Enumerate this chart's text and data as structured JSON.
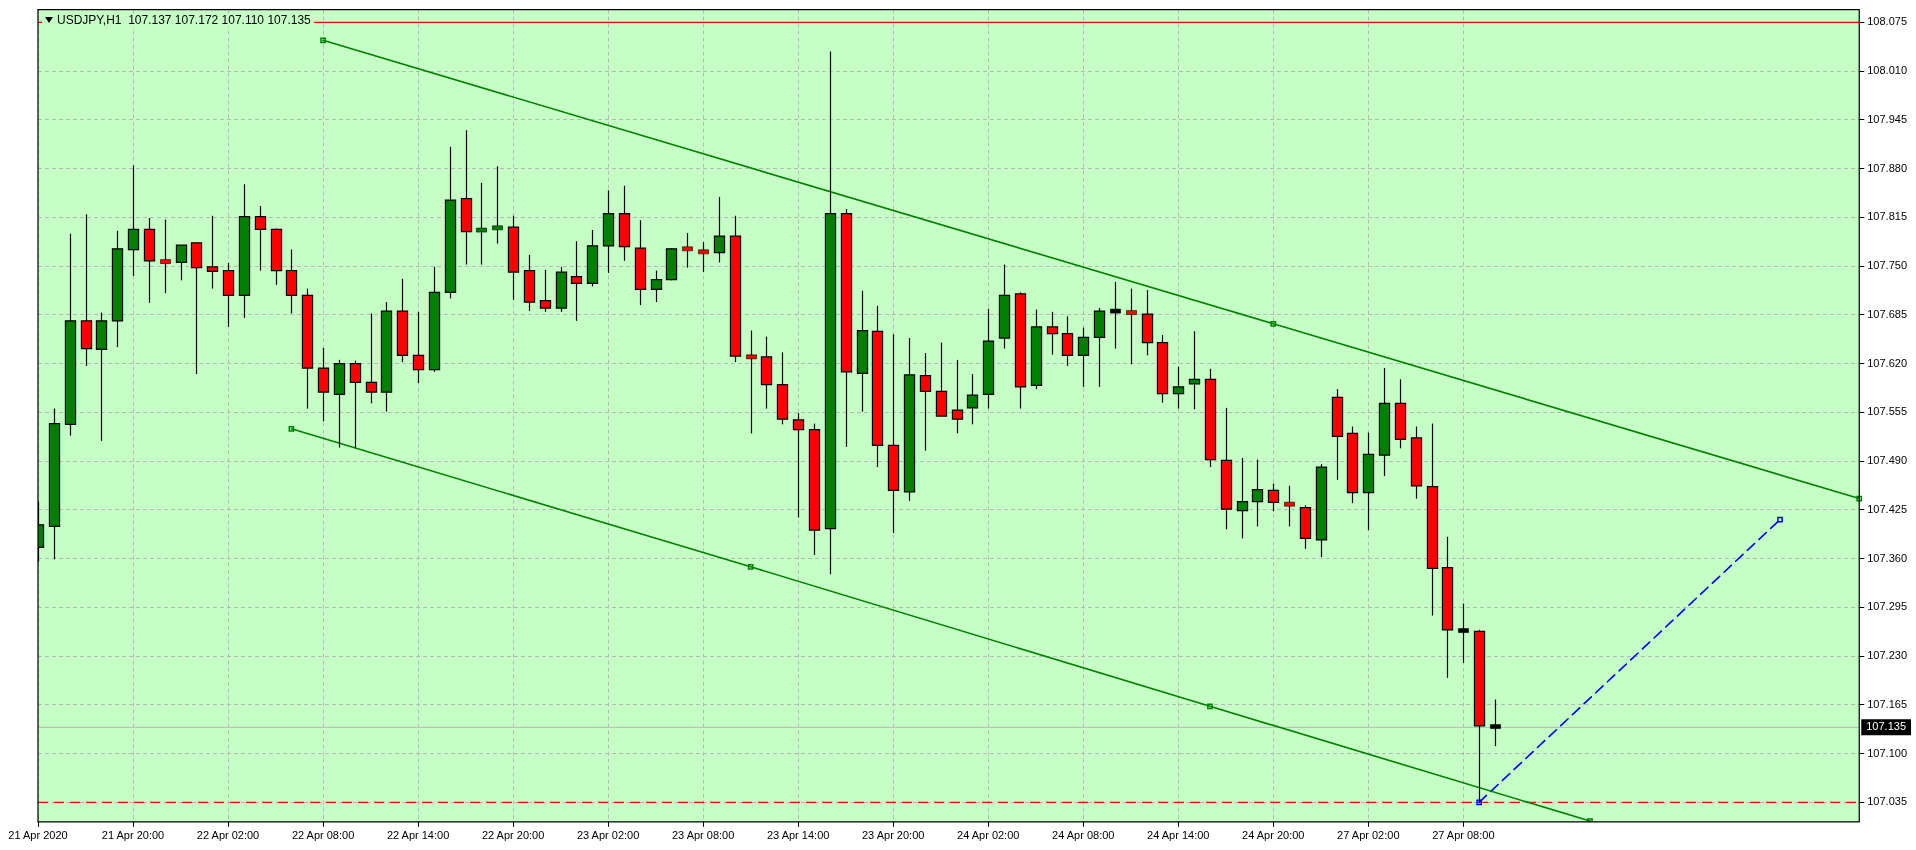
{
  "chart_data": {
    "type": "candlestick",
    "title": "USDJPY,H1  107.137 107.172 107.110 107.135",
    "categories": [
      "21 Apr 2020",
      null,
      null,
      null,
      null,
      null,
      "21 Apr 20:00",
      null,
      null,
      null,
      null,
      null,
      "22 Apr 02:00",
      null,
      null,
      null,
      null,
      null,
      "22 Apr 08:00",
      null,
      null,
      null,
      null,
      null,
      "22 Apr 14:00",
      null,
      null,
      null,
      null,
      null,
      "22 Apr 20:00",
      null,
      null,
      null,
      null,
      null,
      "23 Apr 02:00",
      null,
      null,
      null,
      null,
      null,
      "23 Apr 08:00",
      null,
      null,
      null,
      null,
      null,
      "23 Apr 14:00",
      null,
      null,
      null,
      null,
      null,
      "23 Apr 20:00",
      null,
      null,
      null,
      null,
      null,
      "24 Apr 02:00",
      null,
      null,
      null,
      null,
      null,
      "24 Apr 08:00",
      null,
      null,
      null,
      null,
      null,
      "24 Apr 14:00",
      null,
      null,
      null,
      null,
      null,
      "24 Apr 20:00",
      null,
      null,
      null,
      null,
      null,
      "27 Apr 02:00",
      null,
      null,
      null,
      null,
      null,
      "27 Apr 08:00",
      null,
      null,
      null,
      null,
      null,
      null,
      null,
      null,
      null,
      null,
      null,
      null,
      null,
      null,
      null,
      null,
      null,
      null,
      null,
      null,
      null,
      null,
      null,
      null,
      null
    ],
    "ohlc": [
      [
        107.375,
        107.436,
        107.356,
        107.405
      ],
      [
        107.403,
        107.56,
        107.359,
        107.54
      ],
      [
        107.539,
        107.793,
        107.524,
        107.677
      ],
      [
        107.677,
        107.819,
        107.617,
        107.64
      ],
      [
        107.639,
        107.688,
        107.517,
        107.677
      ],
      [
        107.677,
        107.797,
        107.642,
        107.773
      ],
      [
        107.772,
        107.884,
        107.737,
        107.799
      ],
      [
        107.799,
        107.814,
        107.701,
        107.757
      ],
      [
        107.757,
        107.812,
        107.714,
        107.755
      ],
      [
        107.755,
        107.778,
        107.731,
        107.778
      ],
      [
        107.781,
        107.781,
        107.606,
        107.748
      ],
      [
        107.749,
        107.817,
        107.72,
        107.743
      ],
      [
        107.744,
        107.754,
        107.669,
        107.711
      ],
      [
        107.711,
        107.859,
        107.681,
        107.816
      ],
      [
        107.816,
        107.83,
        107.744,
        107.799
      ],
      [
        107.799,
        107.8,
        107.725,
        107.744
      ],
      [
        107.744,
        107.772,
        107.687,
        107.711
      ],
      [
        107.711,
        107.72,
        107.56,
        107.614
      ],
      [
        107.614,
        107.641,
        107.543,
        107.582
      ],
      [
        107.579,
        107.625,
        107.508,
        107.62
      ],
      [
        107.62,
        107.624,
        107.508,
        107.595
      ],
      [
        107.595,
        107.687,
        107.567,
        107.582
      ],
      [
        107.582,
        107.702,
        107.556,
        107.69
      ],
      [
        107.69,
        107.733,
        107.622,
        107.631
      ],
      [
        107.631,
        107.689,
        107.594,
        107.612
      ],
      [
        107.612,
        107.749,
        107.609,
        107.715
      ],
      [
        107.715,
        107.909,
        107.707,
        107.838
      ],
      [
        107.84,
        107.931,
        107.752,
        107.796
      ],
      [
        107.796,
        107.861,
        107.752,
        107.8
      ],
      [
        107.799,
        107.883,
        107.78,
        107.803
      ],
      [
        107.802,
        107.817,
        107.705,
        107.742
      ],
      [
        107.744,
        107.765,
        107.69,
        107.702
      ],
      [
        107.704,
        107.745,
        107.689,
        107.694
      ],
      [
        107.694,
        107.749,
        107.689,
        107.742
      ],
      [
        107.736,
        107.783,
        107.677,
        107.727
      ],
      [
        107.727,
        107.798,
        107.723,
        107.777
      ],
      [
        107.777,
        107.851,
        107.741,
        107.82
      ],
      [
        107.82,
        107.857,
        107.757,
        107.776
      ],
      [
        107.774,
        107.811,
        107.698,
        107.719
      ],
      [
        107.719,
        107.744,
        107.702,
        107.732
      ],
      [
        107.732,
        107.774,
        107.731,
        107.773
      ],
      [
        107.774,
        107.794,
        107.748,
        107.772
      ],
      [
        107.77,
        107.782,
        107.742,
        107.768
      ],
      [
        107.768,
        107.842,
        107.755,
        107.79
      ],
      [
        107.79,
        107.817,
        107.622,
        107.63
      ],
      [
        107.631,
        107.664,
        107.527,
        107.627
      ],
      [
        107.629,
        107.656,
        107.56,
        107.592
      ],
      [
        107.592,
        107.635,
        107.539,
        107.546
      ],
      [
        107.545,
        107.554,
        107.415,
        107.532
      ],
      [
        107.532,
        107.54,
        107.365,
        107.398
      ],
      [
        107.4,
        108.036,
        107.339,
        107.82
      ],
      [
        107.82,
        107.826,
        107.509,
        107.609
      ],
      [
        107.607,
        107.717,
        107.556,
        107.664
      ],
      [
        107.663,
        107.697,
        107.482,
        107.511
      ],
      [
        107.511,
        107.659,
        107.394,
        107.451
      ],
      [
        107.449,
        107.654,
        107.437,
        107.605
      ],
      [
        107.604,
        107.634,
        107.504,
        107.583
      ],
      [
        107.583,
        107.648,
        107.55,
        107.55
      ],
      [
        107.558,
        107.625,
        107.527,
        107.546
      ],
      [
        107.561,
        107.606,
        107.539,
        107.578
      ],
      [
        107.579,
        107.693,
        107.56,
        107.65
      ],
      [
        107.654,
        107.752,
        107.64,
        107.711
      ],
      [
        107.713,
        107.715,
        107.56,
        107.589
      ],
      [
        107.591,
        107.692,
        107.586,
        107.669
      ],
      [
        107.669,
        107.689,
        107.632,
        107.66
      ],
      [
        107.66,
        107.683,
        107.617,
        107.631
      ],
      [
        107.631,
        107.668,
        107.589,
        107.655
      ],
      [
        107.655,
        107.694,
        107.589,
        107.69
      ],
      [
        107.69,
        107.729,
        107.64,
        107.69
      ],
      [
        107.69,
        107.72,
        107.619,
        107.686
      ],
      [
        107.686,
        107.718,
        107.631,
        107.648
      ],
      [
        107.648,
        107.658,
        107.568,
        107.58
      ],
      [
        107.58,
        107.616,
        107.56,
        107.589
      ],
      [
        107.593,
        107.663,
        107.559,
        107.599
      ],
      [
        107.599,
        107.613,
        107.482,
        107.492
      ],
      [
        107.491,
        107.561,
        107.399,
        107.426
      ],
      [
        107.424,
        107.494,
        107.387,
        107.436
      ],
      [
        107.436,
        107.492,
        107.403,
        107.452
      ],
      [
        107.451,
        107.46,
        107.423,
        107.435
      ],
      [
        107.435,
        107.457,
        107.403,
        107.43
      ],
      [
        107.428,
        107.431,
        107.373,
        107.387
      ],
      [
        107.385,
        107.486,
        107.362,
        107.482
      ],
      [
        107.575,
        107.586,
        107.465,
        107.523
      ],
      [
        107.527,
        107.536,
        107.434,
        107.448
      ],
      [
        107.448,
        107.528,
        107.398,
        107.499
      ],
      [
        107.498,
        107.614,
        107.47,
        107.567
      ],
      [
        107.567,
        107.599,
        107.507,
        107.519
      ],
      [
        107.521,
        107.536,
        107.44,
        107.457
      ],
      [
        107.456,
        107.54,
        107.284,
        107.347
      ],
      [
        107.348,
        107.389,
        107.201,
        107.265
      ],
      [
        107.264,
        107.3,
        107.221,
        107.264
      ],
      [
        107.263,
        107.265,
        107.035,
        107.137
      ],
      [
        107.137,
        107.172,
        107.11,
        107.135
      ],
      null,
      null,
      null,
      null,
      null,
      null,
      null,
      null,
      null,
      null,
      null,
      null,
      null,
      null,
      null,
      null,
      null,
      null,
      null,
      null,
      null,
      null,
      null
    ],
    "colors": [
      "#008000",
      "#008000",
      "#008000",
      "#ff0000",
      "#008000",
      "#008000",
      "#008000",
      "#ff0000",
      "#ff0000",
      "#008000",
      "#ff0000",
      "#ff0000",
      "#ff0000",
      "#008000",
      "#ff0000",
      "#ff0000",
      "#ff0000",
      "#ff0000",
      "#ff0000",
      "#008000",
      "#ff0000",
      "#ff0000",
      "#008000",
      "#ff0000",
      "#ff0000",
      "#008000",
      "#008000",
      "#ff0000",
      "#008000",
      "#008000",
      "#ff0000",
      "#ff0000",
      "#ff0000",
      "#008000",
      "#ff0000",
      "#008000",
      "#008000",
      "#ff0000",
      "#ff0000",
      "#008000",
      "#008000",
      "#ff0000",
      "#ff0000",
      "#008000",
      "#ff0000",
      "#ff0000",
      "#ff0000",
      "#ff0000",
      "#ff0000",
      "#ff0000",
      "#008000",
      "#ff0000",
      "#008000",
      "#ff0000",
      "#ff0000",
      "#008000",
      "#ff0000",
      "#ff0000",
      "#ff0000",
      "#008000",
      "#008000",
      "#008000",
      "#ff0000",
      "#008000",
      "#ff0000",
      "#ff0000",
      "#008000",
      "#008000",
      "#000000",
      "#ff0000",
      "#ff0000",
      "#ff0000",
      "#008000",
      "#008000",
      "#ff0000",
      "#ff0000",
      "#008000",
      "#008000",
      "#ff0000",
      "#ff0000",
      "#ff0000",
      "#008000",
      "#ff0000",
      "#ff0000",
      "#008000",
      "#008000",
      "#ff0000",
      "#ff0000",
      "#ff0000",
      "#ff0000",
      "#000000",
      "#ff0000",
      "#000000",
      null,
      null,
      null,
      null,
      null,
      null,
      null,
      null,
      null,
      null,
      null,
      null,
      null,
      null,
      null,
      null,
      null,
      null,
      null,
      null,
      null,
      null,
      null
    ],
    "series": [
      {
        "type": "line",
        "color": "#008000",
        "marker": "square",
        "values": [
          null,
          null,
          null,
          null,
          null,
          null,
          null,
          null,
          null,
          null,
          null,
          null,
          null,
          null,
          null,
          null,
          null,
          null,
          108.051,
          null,
          null,
          null,
          null,
          null,
          null,
          null,
          null,
          null,
          null,
          null,
          null,
          null,
          null,
          null,
          null,
          null,
          null,
          null,
          null,
          null,
          null,
          null,
          null,
          null,
          null,
          null,
          null,
          null,
          null,
          null,
          null,
          null,
          null,
          null,
          null,
          null,
          null,
          null,
          null,
          null,
          null,
          null,
          null,
          null,
          null,
          null,
          null,
          null,
          null,
          null,
          null,
          null,
          null,
          null,
          null,
          null,
          null,
          null,
          107.673,
          null,
          null,
          null,
          null,
          null,
          null,
          null,
          null,
          null,
          null,
          null,
          null,
          null,
          null,
          null,
          null,
          null,
          null,
          null,
          null,
          null,
          null,
          null,
          null,
          null,
          null,
          null,
          null,
          null,
          null,
          null,
          null,
          null,
          null,
          null,
          null,
          107.44
        ]
      },
      {
        "type": "line",
        "color": "#008000",
        "marker": "square",
        "values": [
          null,
          null,
          null,
          null,
          null,
          null,
          null,
          null,
          null,
          null,
          null,
          null,
          null,
          null,
          null,
          null,
          107.533,
          null,
          null,
          null,
          null,
          null,
          null,
          null,
          null,
          null,
          null,
          null,
          null,
          null,
          null,
          null,
          null,
          null,
          null,
          null,
          null,
          null,
          null,
          null,
          null,
          null,
          null,
          null,
          null,
          107.349,
          null,
          null,
          null,
          null,
          null,
          null,
          null,
          null,
          null,
          null,
          null,
          null,
          null,
          null,
          null,
          null,
          null,
          null,
          null,
          null,
          null,
          null,
          null,
          null,
          null,
          null,
          null,
          null,
          107.163,
          null,
          null,
          null,
          null,
          null,
          null,
          null,
          null,
          null,
          null,
          null,
          null,
          null,
          null,
          null,
          null,
          null,
          null,
          null,
          null,
          null,
          null,
          null,
          107.01,
          null,
          null,
          null,
          null,
          null,
          null,
          null,
          null,
          null,
          null,
          null,
          null,
          null,
          null,
          null,
          null,
          null
        ]
      },
      {
        "type": "line",
        "color": "#0000ff",
        "marker": "square",
        "line_style": "dashed",
        "values": [
          null,
          null,
          null,
          null,
          null,
          null,
          null,
          null,
          null,
          null,
          null,
          null,
          null,
          null,
          null,
          null,
          null,
          null,
          null,
          null,
          null,
          null,
          null,
          null,
          null,
          null,
          null,
          null,
          null,
          null,
          null,
          null,
          null,
          null,
          null,
          null,
          null,
          null,
          null,
          null,
          null,
          null,
          null,
          null,
          null,
          null,
          null,
          null,
          null,
          null,
          null,
          null,
          null,
          null,
          null,
          null,
          null,
          null,
          null,
          null,
          null,
          null,
          null,
          null,
          null,
          null,
          null,
          null,
          null,
          null,
          null,
          null,
          null,
          null,
          null,
          null,
          null,
          null,
          null,
          null,
          null,
          null,
          null,
          null,
          null,
          null,
          null,
          null,
          null,
          null,
          null,
          107.035,
          null,
          null,
          null,
          null,
          null,
          null,
          null,
          null,
          null,
          null,
          null,
          null,
          null,
          null,
          null,
          null,
          null,
          null,
          107.412,
          null,
          null,
          null,
          null,
          null
        ]
      }
    ],
    "ylim": [
      107.009,
      108.092
    ],
    "yticks": [
      {
        "value": 107.035,
        "label": "107.035"
      },
      {
        "value": 107.1,
        "label": "107.100"
      },
      {
        "value": 107.165,
        "label": "107.165"
      },
      {
        "value": 107.23,
        "label": "107.230"
      },
      {
        "value": 107.295,
        "label": "107.295"
      },
      {
        "value": 107.36,
        "label": "107.360"
      },
      {
        "value": 107.425,
        "label": "107.425"
      },
      {
        "value": 107.49,
        "label": "107.490"
      },
      {
        "value": 107.555,
        "label": "107.555"
      },
      {
        "value": 107.62,
        "label": "107.620"
      },
      {
        "value": 107.685,
        "label": "107.685"
      },
      {
        "value": 107.75,
        "label": "107.750"
      },
      {
        "value": 107.815,
        "label": "107.815"
      },
      {
        "value": 107.88,
        "label": "107.880"
      },
      {
        "value": 107.945,
        "label": "107.945"
      },
      {
        "value": 108.01,
        "label": "108.010"
      },
      {
        "value": 108.075,
        "label": "108.075"
      }
    ],
    "ref_lines": [
      {
        "axis": "y",
        "value": 108.075,
        "color": "#ff0000"
      },
      {
        "axis": "y",
        "value": 107.035,
        "color": "#ff0000",
        "line_style": "dashed"
      },
      {
        "axis": "y",
        "value": 107.135,
        "label": "107.135",
        "color": "#c0c0c0"
      }
    ],
    "grid": true
  }
}
